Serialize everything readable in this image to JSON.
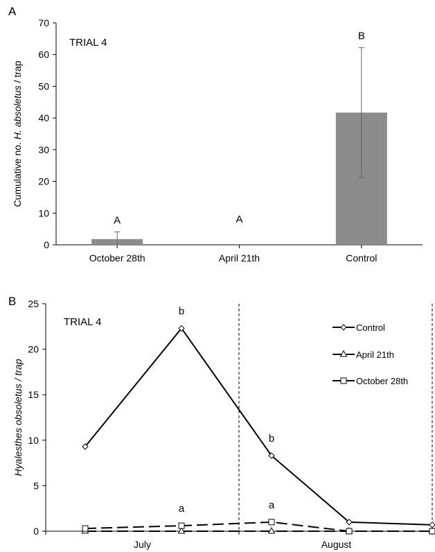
{
  "chart_data": [
    {
      "panel_label": "A",
      "type": "bar",
      "inset_text": "TRIAL 4",
      "ylabel_prefix": "Cumulative no. ",
      "ylabel_italic": "H. absoletus",
      "ylabel_suffix": " / trap",
      "ylim": [
        0,
        70
      ],
      "yticks": [
        0,
        10,
        20,
        30,
        40,
        50,
        60,
        70
      ],
      "categories": [
        "October 28th",
        "April 21th",
        "Control"
      ],
      "values": [
        1.8,
        0,
        41.7
      ],
      "error_low": [
        0.0,
        0,
        21.2
      ],
      "error_high": [
        4.1,
        0,
        62.2
      ],
      "letters": [
        "A",
        "A",
        "B"
      ],
      "bar_color": "#8c8c8c"
    },
    {
      "panel_label": "B",
      "type": "line",
      "inset_text": "TRIAL 4",
      "ylabel": "Hyalesthes obsoletus / trap",
      "ylim": [
        0,
        25
      ],
      "yticks": [
        0,
        5,
        10,
        15,
        20,
        25
      ],
      "month_labels": [
        "July",
        "August"
      ],
      "series": [
        {
          "name": "Control",
          "marker": "diamond",
          "dash": "solid",
          "values": [
            9.3,
            22.3,
            8.3,
            1.0,
            0.7
          ]
        },
        {
          "name": "April 21th",
          "marker": "triangle",
          "dash": "longdash",
          "values": [
            0,
            0,
            0,
            0,
            0
          ]
        },
        {
          "name": "October 28th",
          "marker": "square",
          "dash": "longdash",
          "values": [
            0.3,
            0.6,
            1.0,
            0,
            0
          ]
        }
      ],
      "annotations": [
        {
          "text": "b",
          "point": 1,
          "value_above": 22.3
        },
        {
          "text": "b",
          "point": 2,
          "value_above": 8.3
        },
        {
          "text": "a",
          "point": 1,
          "value_above": 0.6
        },
        {
          "text": "a",
          "point": 2,
          "value_above": 1.0
        }
      ]
    }
  ]
}
